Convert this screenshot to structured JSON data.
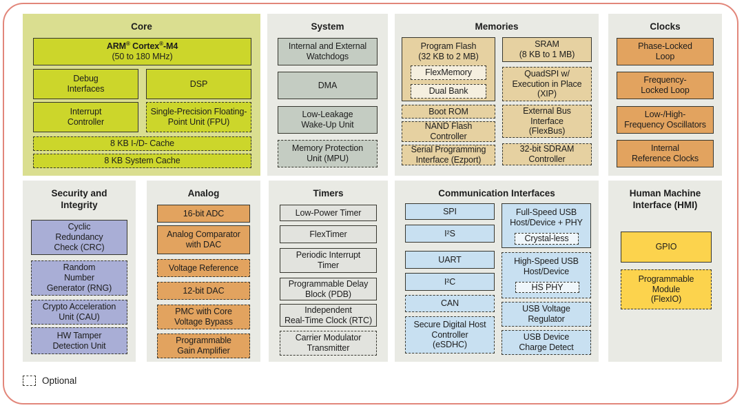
{
  "frame": {
    "border_color": "#e2867a"
  },
  "legend": {
    "label": "Optional"
  },
  "palette": {
    "text": "#1c1c1c",
    "block_border": "#35352d",
    "panel_gray": "#e9eae4"
  },
  "sections": [
    {
      "id": "core",
      "title": "Core",
      "geo": [
        33,
        20,
        345,
        235
      ],
      "panel_fill": "#dade90",
      "block_fill": "#ccd62b",
      "blocks": [
        {
          "id": "arm-cortex-m4",
          "lines": [
            "ARM® Cortex®-M4",
            "(50 to 180 MHz)"
          ],
          "bold_lines": [
            0
          ],
          "geo": [
            15,
            35,
            317,
            40
          ]
        },
        {
          "id": "debug-interfaces",
          "lines": [
            "Debug",
            "Interfaces"
          ],
          "geo": [
            15,
            80,
            153,
            44
          ]
        },
        {
          "id": "dsp",
          "lines": [
            "DSP"
          ],
          "geo": [
            179,
            80,
            153,
            44
          ]
        },
        {
          "id": "interrupt-controller",
          "lines": [
            "Interrupt",
            "Controller"
          ],
          "geo": [
            15,
            128,
            153,
            44
          ]
        },
        {
          "id": "fpu",
          "lines": [
            "Single-Precision Floating-",
            "Point Unit (FPU)"
          ],
          "dashed": true,
          "geo": [
            179,
            128,
            153,
            44
          ]
        },
        {
          "id": "i-d-cache",
          "lines": [
            "8 KB I-/D- Cache"
          ],
          "dashed": true,
          "geo": [
            15,
            178,
            317,
            21
          ]
        },
        {
          "id": "system-cache",
          "lines": [
            "8 KB System Cache"
          ],
          "dashed": true,
          "geo": [
            15,
            203,
            317,
            21
          ]
        }
      ]
    },
    {
      "id": "system",
      "title": "System",
      "geo": [
        388,
        20,
        175,
        235
      ],
      "panel_fill": "#e9eae4",
      "block_fill": "#c4ccc2",
      "blocks": [
        {
          "id": "watchdogs",
          "lines": [
            "Internal and External",
            "Watchdogs"
          ],
          "geo": [
            15,
            35,
            145,
            40
          ]
        },
        {
          "id": "dma",
          "lines": [
            "DMA"
          ],
          "geo": [
            15,
            84,
            145,
            40
          ]
        },
        {
          "id": "llwu",
          "lines": [
            "Low-Leakage",
            "Wake-Up Unit"
          ],
          "geo": [
            15,
            134,
            145,
            40
          ]
        },
        {
          "id": "mpu",
          "lines": [
            "Memory Protection",
            "Unit (MPU)"
          ],
          "dashed": true,
          "geo": [
            15,
            183,
            145,
            40
          ]
        }
      ]
    },
    {
      "id": "memories",
      "title": "Memories",
      "geo": [
        573,
        20,
        296,
        235
      ],
      "panel_fill": "#e9eae4",
      "block_fill": "#e6d1a1",
      "blocks": [
        {
          "id": "program-flash",
          "lines": [
            "Program Flash",
            "(32 KB to 2 MB)"
          ],
          "geo": [
            10,
            34,
            136,
            93
          ],
          "children": [
            {
              "id": "flexmemory",
              "lines": [
                "FlexMemory"
              ],
              "dashed": true,
              "fill": "#f5efdf",
              "geo": [
                12,
                40,
                110,
                21
              ]
            },
            {
              "id": "dual-bank",
              "lines": [
                "Dual Bank"
              ],
              "dashed": true,
              "fill": "#f5efdf",
              "geo": [
                12,
                67,
                110,
                21
              ]
            }
          ]
        },
        {
          "id": "boot-rom",
          "lines": [
            "Boot ROM"
          ],
          "dashed": true,
          "geo": [
            10,
            132,
            136,
            20
          ]
        },
        {
          "id": "nand-flash-controller",
          "lines": [
            "NAND Flash",
            "Controller"
          ],
          "dashed": true,
          "geo": [
            10,
            156,
            136,
            30
          ]
        },
        {
          "id": "ezport",
          "lines": [
            "Serial Programming",
            "Interface (Ezport)"
          ],
          "dashed": true,
          "geo": [
            10,
            190,
            136,
            30
          ]
        },
        {
          "id": "sram",
          "lines": [
            "SRAM",
            "(8 KB to 1 MB)"
          ],
          "geo": [
            156,
            34,
            130,
            36
          ]
        },
        {
          "id": "quadspi",
          "lines": [
            "QuadSPI w/",
            "Execution in Place",
            "(XIP)"
          ],
          "dashed": true,
          "geo": [
            156,
            77,
            130,
            50
          ]
        },
        {
          "id": "flexbus",
          "lines": [
            "External Bus",
            "Interface",
            "(FlexBus)"
          ],
          "dashed": true,
          "geo": [
            156,
            132,
            130,
            48
          ]
        },
        {
          "id": "sdram-controller",
          "lines": [
            "32-bit SDRAM",
            "Controller"
          ],
          "dashed": true,
          "geo": [
            156,
            188,
            130,
            32
          ]
        }
      ]
    },
    {
      "id": "clocks",
      "title": "Clocks",
      "geo": [
        883,
        20,
        165,
        235
      ],
      "panel_fill": "#e9eae4",
      "block_fill": "#e2a35f",
      "blocks": [
        {
          "id": "pll",
          "lines": [
            "Phase-Locked",
            "Loop"
          ],
          "geo": [
            12,
            35,
            141,
            40
          ]
        },
        {
          "id": "fll",
          "lines": [
            "Frequency-",
            "Locked Loop"
          ],
          "geo": [
            12,
            84,
            141,
            40
          ]
        },
        {
          "id": "oscillators",
          "lines": [
            "Low-/High-",
            "Frequency Oscillators"
          ],
          "geo": [
            12,
            134,
            141,
            40
          ]
        },
        {
          "id": "internal-reference-clocks",
          "lines": [
            "Internal",
            "Reference Clocks"
          ],
          "geo": [
            12,
            183,
            141,
            40
          ]
        }
      ]
    },
    {
      "id": "security",
      "title": "Security and\nIntegrity",
      "geo": [
        33,
        262,
        164,
        263
      ],
      "panel_fill": "#e9eae4",
      "block_fill": "#a9aed6",
      "blocks": [
        {
          "id": "crc",
          "lines": [
            "Cyclic",
            "Redundancy",
            "Check (CRC)"
          ],
          "geo": [
            12,
            57,
            140,
            51
          ]
        },
        {
          "id": "rng",
          "lines": [
            "Random",
            "Number",
            "Generator (RNG)"
          ],
          "dashed": true,
          "geo": [
            12,
            116,
            140,
            51
          ]
        },
        {
          "id": "cau",
          "lines": [
            "Crypto Acceleration",
            "Unit (CAU)"
          ],
          "dashed": true,
          "geo": [
            12,
            173,
            140,
            36
          ]
        },
        {
          "id": "hw-tamper-detection",
          "lines": [
            "HW Tamper",
            "Detection Unit"
          ],
          "dashed": true,
          "geo": [
            12,
            213,
            140,
            39
          ]
        }
      ]
    },
    {
      "id": "analog",
      "title": "Analog",
      "geo": [
        213,
        262,
        165,
        263
      ],
      "panel_fill": "#e9eae4",
      "block_fill": "#e2a35f",
      "blocks": [
        {
          "id": "adc-16bit",
          "lines": [
            "16-bit ADC"
          ],
          "geo": [
            15,
            35,
            135,
            26
          ]
        },
        {
          "id": "analog-comparator",
          "lines": [
            "Analog Comparator",
            "with DAC"
          ],
          "geo": [
            15,
            65,
            135,
            42
          ]
        },
        {
          "id": "voltage-reference",
          "lines": [
            "Voltage Reference"
          ],
          "dashed": true,
          "geo": [
            15,
            114,
            135,
            26
          ]
        },
        {
          "id": "dac-12bit",
          "lines": [
            "12-bit DAC"
          ],
          "dashed": true,
          "geo": [
            15,
            147,
            135,
            26
          ]
        },
        {
          "id": "pmc",
          "lines": [
            "PMC with Core",
            "Voltage Bypass"
          ],
          "dashed": true,
          "geo": [
            15,
            180,
            135,
            36
          ]
        },
        {
          "id": "pga",
          "lines": [
            "Programmable",
            "Gain Amplifier"
          ],
          "dashed": true,
          "geo": [
            15,
            222,
            135,
            36
          ]
        }
      ]
    },
    {
      "id": "timers",
      "title": "Timers",
      "geo": [
        390,
        262,
        173,
        263
      ],
      "panel_fill": "#e9eae4",
      "block_fill": "#e2e3de",
      "blocks": [
        {
          "id": "low-power-timer",
          "lines": [
            "Low-Power Timer"
          ],
          "geo": [
            16,
            35,
            141,
            24
          ]
        },
        {
          "id": "flextimer",
          "lines": [
            "FlexTimer"
          ],
          "geo": [
            16,
            65,
            141,
            26
          ]
        },
        {
          "id": "pit",
          "lines": [
            "Periodic Interrupt",
            "Timer"
          ],
          "geo": [
            16,
            98,
            141,
            36
          ]
        },
        {
          "id": "pdb",
          "lines": [
            "Programmable Delay",
            "Block (PDB)"
          ],
          "geo": [
            16,
            141,
            141,
            33
          ]
        },
        {
          "id": "rtc",
          "lines": [
            "Independent",
            "Real-Time Clock (RTC)"
          ],
          "geo": [
            16,
            179,
            141,
            33
          ]
        },
        {
          "id": "cmt",
          "lines": [
            "Carrier Modulator",
            "Transmitter"
          ],
          "dashed": true,
          "geo": [
            16,
            218,
            141,
            36
          ]
        }
      ]
    },
    {
      "id": "communication",
      "title": "Communication Interfaces",
      "geo": [
        573,
        262,
        296,
        263
      ],
      "panel_fill": "#e9eae4",
      "block_fill": "#c8e0f1",
      "blocks": [
        {
          "id": "spi",
          "lines": [
            "SPI"
          ],
          "geo": [
            15,
            33,
            130,
            24
          ]
        },
        {
          "id": "i2s",
          "lines": [
            "I²S"
          ],
          "geo": [
            15,
            64,
            130,
            26
          ]
        },
        {
          "id": "uart",
          "lines": [
            "UART"
          ],
          "geo": [
            15,
            102,
            130,
            26
          ]
        },
        {
          "id": "i2c",
          "lines": [
            "I²C"
          ],
          "geo": [
            15,
            134,
            130,
            26
          ]
        },
        {
          "id": "can",
          "lines": [
            "CAN"
          ],
          "dashed": true,
          "geo": [
            15,
            166,
            130,
            25
          ]
        },
        {
          "id": "esdhc",
          "lines": [
            "Secure Digital Host",
            "Controller",
            "(eSDHC)"
          ],
          "dashed": true,
          "geo": [
            15,
            197,
            130,
            54
          ]
        },
        {
          "id": "full-speed-usb",
          "lines": [
            "Full-Speed USB",
            "Host/Device + PHY"
          ],
          "geo": [
            155,
            33,
            130,
            65
          ],
          "children": [
            {
              "id": "crystal-less",
              "lines": [
                "Crystal-less"
              ],
              "dashed": true,
              "fill": "#eff6fb",
              "geo": [
                18,
                42,
                93,
                17
              ]
            }
          ]
        },
        {
          "id": "high-speed-usb",
          "lines": [
            "High-Speed USB",
            "Host/Device"
          ],
          "dashed": true,
          "geo": [
            155,
            104,
            130,
            67
          ],
          "children": [
            {
              "id": "hs-phy",
              "lines": [
                "HS PHY"
              ],
              "dashed": true,
              "fill": "#eff6fb",
              "geo": [
                19,
                42,
                93,
                16
              ]
            }
          ]
        },
        {
          "id": "usb-voltage-regulator",
          "lines": [
            "USB Voltage",
            "Regulator"
          ],
          "dashed": true,
          "geo": [
            155,
            176,
            130,
            36
          ]
        },
        {
          "id": "usb-charge-detect",
          "lines": [
            "USB Device",
            "Charge Detect"
          ],
          "dashed": true,
          "geo": [
            155,
            217,
            130,
            36
          ]
        }
      ]
    },
    {
      "id": "hmi",
      "title": "Human Machine\nInterface (HMI)",
      "geo": [
        883,
        262,
        165,
        263
      ],
      "panel_fill": "#e9eae4",
      "block_fill": "#fcd34d",
      "blocks": [
        {
          "id": "gpio",
          "lines": [
            "GPIO"
          ],
          "geo": [
            18,
            74,
            132,
            45
          ]
        },
        {
          "id": "flexio",
          "lines": [
            "Programmable",
            "Module",
            "(FlexIO)"
          ],
          "dashed": true,
          "geo": [
            18,
            129,
            132,
            58
          ]
        }
      ]
    }
  ]
}
